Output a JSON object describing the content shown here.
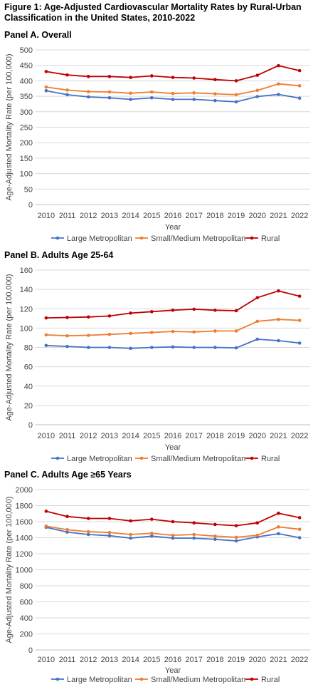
{
  "figure_title": "Figure 1: Age-Adjusted Cardiovascular Mortality Rates by Rural-Urban Classification in the United States, 2010-2022",
  "colors": {
    "large": "#4472C4",
    "small": "#ED7D31",
    "rural": "#C00000"
  },
  "chart_data": [
    {
      "type": "line",
      "title": "Panel A. Overall",
      "xlabel": "Year",
      "ylabel": "Age-Adjusted Mortality Rate (per 100,000)",
      "ylim": [
        0,
        500
      ],
      "yticks": [
        0,
        50,
        100,
        150,
        200,
        250,
        300,
        350,
        400,
        450,
        500
      ],
      "categories": [
        "2010",
        "2011",
        "2012",
        "2013",
        "2014",
        "2015",
        "2016",
        "2017",
        "2018",
        "2019",
        "2020",
        "2021",
        "2022"
      ],
      "grid": true,
      "legend": "bottom",
      "series": [
        {
          "name": "Large Metropolitan",
          "values": [
            368,
            355,
            348,
            345,
            340,
            345,
            340,
            340,
            336,
            332,
            349,
            356,
            344
          ]
        },
        {
          "name": "Small/Medium Metropolitan",
          "values": [
            380,
            370,
            365,
            364,
            360,
            364,
            359,
            361,
            358,
            355,
            369,
            390,
            384
          ]
        },
        {
          "name": "Rural",
          "values": [
            430,
            419,
            414,
            414,
            411,
            416,
            411,
            409,
            404,
            400,
            418,
            449,
            433
          ]
        }
      ]
    },
    {
      "type": "line",
      "title": "Panel B. Adults Age 25-64",
      "xlabel": "Year",
      "ylabel": "Age-Adjusted Mortality Rate (per 100,000)",
      "ylim": [
        0,
        160
      ],
      "yticks": [
        0,
        20,
        40,
        60,
        80,
        100,
        120,
        140,
        160
      ],
      "categories": [
        "2010",
        "2011",
        "2012",
        "2013",
        "2014",
        "2015",
        "2016",
        "2017",
        "2018",
        "2019",
        "2020",
        "2021",
        "2022"
      ],
      "grid": true,
      "legend": "bottom",
      "series": [
        {
          "name": "Large Metropolitan",
          "values": [
            82,
            81,
            80,
            80,
            79,
            80,
            80.5,
            80,
            80,
            79.5,
            88.5,
            87,
            84.5
          ]
        },
        {
          "name": "Small/Medium Metropolitan",
          "values": [
            93,
            92,
            92.5,
            93.5,
            94.5,
            95.5,
            96.5,
            96,
            97,
            97,
            107,
            109,
            108
          ]
        },
        {
          "name": "Rural",
          "values": [
            110.5,
            111,
            111.5,
            112.5,
            115.5,
            117,
            118.5,
            119.5,
            118.5,
            118,
            131.5,
            138.5,
            133
          ]
        }
      ]
    },
    {
      "type": "line",
      "title": "Panel C. Adults Age ≥65 Years",
      "xlabel": "Year",
      "ylabel": "Age-Adjusted Mortality Rate (per 100,000)",
      "ylim": [
        0,
        2000
      ],
      "yticks": [
        0,
        200,
        400,
        600,
        800,
        1000,
        1200,
        1400,
        1600,
        1800,
        2000
      ],
      "categories": [
        "2010",
        "2011",
        "2012",
        "2013",
        "2014",
        "2015",
        "2016",
        "2017",
        "2018",
        "2019",
        "2020",
        "2021",
        "2022"
      ],
      "grid": true,
      "legend": "bottom",
      "series": [
        {
          "name": "Large Metropolitan",
          "values": [
            1530,
            1470,
            1440,
            1425,
            1395,
            1420,
            1395,
            1395,
            1380,
            1360,
            1410,
            1450,
            1400
          ]
        },
        {
          "name": "Small/Medium Metropolitan",
          "values": [
            1545,
            1500,
            1475,
            1465,
            1440,
            1455,
            1430,
            1440,
            1420,
            1405,
            1430,
            1535,
            1505
          ]
        },
        {
          "name": "Rural",
          "values": [
            1730,
            1665,
            1640,
            1640,
            1610,
            1630,
            1600,
            1585,
            1565,
            1550,
            1585,
            1705,
            1650
          ]
        }
      ]
    }
  ]
}
